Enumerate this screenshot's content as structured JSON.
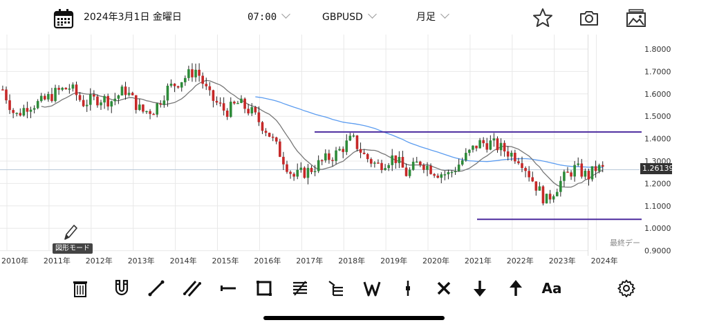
{
  "header": {
    "date": "2024年3月1日 金曜日",
    "time": "07:00",
    "symbol": "GBPUSD",
    "timeframe": "月足"
  },
  "chart_data": {
    "type": "candlestick",
    "symbol": "GBPUSD",
    "timeframe": "月足",
    "y_ticks": [
      "1.8000",
      "1.7000",
      "1.6000",
      "1.5000",
      "1.4000",
      "1.3000",
      "1.2000",
      "1.1000",
      "1.0000",
      "0.9000"
    ],
    "x_ticks": [
      "2010年",
      "2011年",
      "2012年",
      "2013年",
      "2014年",
      "2015年",
      "2016年",
      "2017年",
      "2018年",
      "2019年",
      "2020年",
      "2021年",
      "2022年",
      "2023年",
      "2024年"
    ],
    "ylim": [
      0.88,
      1.82
    ],
    "current_price": "1.26139",
    "horizontal_lines": [
      1.43,
      1.04
    ],
    "last_data_label": "最終デー",
    "colors": {
      "up": "#2e8b3a",
      "down": "#c62828",
      "ma_short": "#777777",
      "ma_long": "#5b9cf0",
      "hline": "#4b2a9e",
      "grid": "#e8e8e8"
    },
    "candles_yearly_closes": [
      [
        2009.9,
        1.62
      ],
      [
        2010.2,
        1.5
      ],
      [
        2010.5,
        1.55
      ],
      [
        2010.8,
        1.56
      ],
      [
        2011.2,
        1.61
      ],
      [
        2011.5,
        1.63
      ],
      [
        2011.8,
        1.56
      ],
      [
        2012.2,
        1.58
      ],
      [
        2012.5,
        1.57
      ],
      [
        2012.8,
        1.62
      ],
      [
        2013.2,
        1.52
      ],
      [
        2013.5,
        1.53
      ],
      [
        2013.8,
        1.62
      ],
      [
        2014.2,
        1.67
      ],
      [
        2014.5,
        1.71
      ],
      [
        2014.8,
        1.59
      ],
      [
        2015.2,
        1.52
      ],
      [
        2015.5,
        1.56
      ],
      [
        2015.8,
        1.52
      ],
      [
        2016.2,
        1.43
      ],
      [
        2016.5,
        1.33
      ],
      [
        2016.8,
        1.23
      ],
      [
        2017.2,
        1.26
      ],
      [
        2017.5,
        1.3
      ],
      [
        2017.8,
        1.33
      ],
      [
        2018.2,
        1.4
      ],
      [
        2018.5,
        1.32
      ],
      [
        2018.8,
        1.28
      ],
      [
        2019.2,
        1.32
      ],
      [
        2019.5,
        1.24
      ],
      [
        2019.8,
        1.3
      ],
      [
        2020.2,
        1.25
      ],
      [
        2020.5,
        1.24
      ],
      [
        2020.8,
        1.3
      ],
      [
        2021.2,
        1.38
      ],
      [
        2021.5,
        1.38
      ],
      [
        2021.8,
        1.35
      ],
      [
        2022.2,
        1.31
      ],
      [
        2022.5,
        1.21
      ],
      [
        2022.8,
        1.12
      ],
      [
        2023.2,
        1.22
      ],
      [
        2023.5,
        1.27
      ],
      [
        2023.8,
        1.23
      ],
      [
        2024.0,
        1.27
      ],
      [
        2024.2,
        1.26
      ]
    ]
  },
  "drawing": {
    "pencil_label": "図形モード"
  },
  "toolbar": {
    "tools": [
      "trash-icon",
      "magnet-icon",
      "line-icon",
      "parallel-lines-icon",
      "horizontal-line-icon",
      "rectangle-icon",
      "fibonacci-icon",
      "fib-fan-icon",
      "wave-icon",
      "vertical-line-icon",
      "delete-cross-icon",
      "arrow-down-icon",
      "arrow-up-icon",
      "text-icon",
      "settings-icon"
    ],
    "text_label": "Aa"
  }
}
